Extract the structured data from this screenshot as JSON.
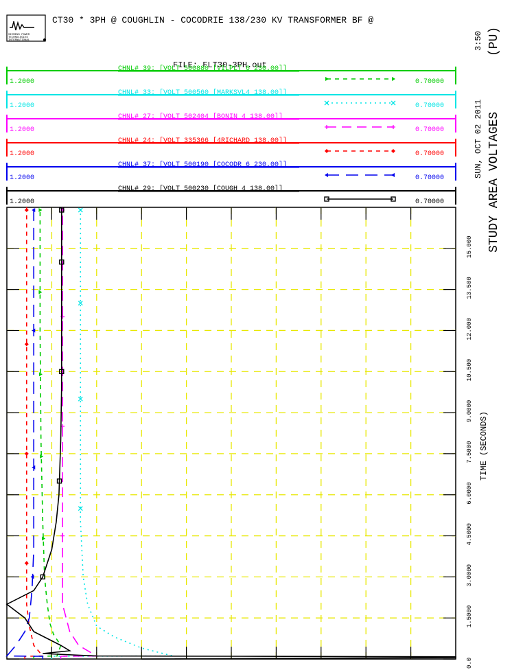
{
  "header": {
    "title": "CT30 * 3PH @ COUGHLIN - COCODRIE 138/230 KV TRANSFORMER BF @",
    "file": "FILE: FLT30-3PH.out",
    "logo_lines": [
      "SIEMENS POWER",
      "TECHNOLOGIES",
      "INTERNATIONAL"
    ]
  },
  "side": {
    "time": "3:50",
    "date": "SUN, OCT 02 2011",
    "units": "(PU)",
    "title": "STUDY AREA VOLTAGES"
  },
  "chart_data": {
    "type": "line",
    "xlabel": "TIME (SECONDS)",
    "xlim": [
      0,
      16.5
    ],
    "ylim": [
      0.7,
      1.2
    ],
    "x_ticks": [
      "0.0",
      "1.5000",
      "3.0000",
      "4.5000",
      "6.0000",
      "7.5000",
      "9.0000",
      "10.500",
      "12.000",
      "13.500",
      "15.000"
    ],
    "grid": true,
    "series": [
      {
        "name": "CHNL# 39: [VOLT 500880 [VILPLT 6    230.00]]",
        "color": "#00cc00",
        "ymax": "1.2000",
        "ymin": "0.70000",
        "points": [
          [
            0,
            0.73
          ],
          [
            0.1,
            0.73
          ],
          [
            0.11,
            0.756
          ],
          [
            0.5,
            0.76
          ],
          [
            0.9,
            0.752
          ],
          [
            1.3,
            0.748
          ],
          [
            2.0,
            0.745
          ],
          [
            3.0,
            0.742
          ],
          [
            5.0,
            0.74
          ],
          [
            8.0,
            0.738
          ],
          [
            12.0,
            0.737
          ],
          [
            16.5,
            0.737
          ]
        ]
      },
      {
        "name": "CHNL# 33: [VOLT 500560 [MARKSVL4    138.00]]",
        "color": "#00e5e5",
        "ymax": "1.2000",
        "ymin": "0.70000",
        "points": [
          [
            0,
            0.75
          ],
          [
            0.1,
            0.75
          ],
          [
            0.11,
            0.885
          ],
          [
            0.4,
            0.85
          ],
          [
            0.8,
            0.82
          ],
          [
            1.2,
            0.8
          ],
          [
            2.0,
            0.79
          ],
          [
            3.0,
            0.785
          ],
          [
            5.0,
            0.782
          ],
          [
            8.0,
            0.782
          ],
          [
            12.0,
            0.782
          ],
          [
            16.5,
            0.782
          ]
        ]
      },
      {
        "name": "CHNL# 27: [VOLT 502404 [BONIN  4    138.00]]",
        "color": "#ff00ff",
        "ymax": "1.2000",
        "ymin": "0.70000",
        "points": [
          [
            0,
            0.76
          ],
          [
            0.1,
            0.76
          ],
          [
            0.11,
            0.8
          ],
          [
            0.5,
            0.78
          ],
          [
            1.0,
            0.77
          ],
          [
            2.0,
            0.762
          ],
          [
            3.0,
            0.762
          ],
          [
            5.0,
            0.762
          ],
          [
            8.0,
            0.762
          ],
          [
            12.0,
            0.762
          ],
          [
            16.5,
            0.762
          ]
        ]
      },
      {
        "name": "CHNL# 24: [VOLT 335366 [4RICHARD    138.00]]",
        "color": "#ff0000",
        "ymax": "1.2000",
        "ymin": "0.70000",
        "points": [
          [
            0,
            0.72
          ],
          [
            0.1,
            0.72
          ],
          [
            0.11,
            0.74
          ],
          [
            0.5,
            0.73
          ],
          [
            1.2,
            0.725
          ],
          [
            2.0,
            0.722
          ],
          [
            3.0,
            0.722
          ],
          [
            8.0,
            0.722
          ],
          [
            16.5,
            0.722
          ]
        ]
      },
      {
        "name": "CHNL# 37: [VOLT 500190 [COCODR 6    230.00]]",
        "color": "#0000ee",
        "ymax": "1.2000",
        "ymin": "0.70000",
        "points": [
          [
            0,
            0.74
          ],
          [
            0.1,
            0.74
          ],
          [
            0.11,
            0.7
          ],
          [
            0.5,
            0.71
          ],
          [
            1.0,
            0.72
          ],
          [
            1.5,
            0.725
          ],
          [
            2.5,
            0.728
          ],
          [
            4.0,
            0.73
          ],
          [
            8.0,
            0.73
          ],
          [
            16.5,
            0.73
          ]
        ]
      },
      {
        "name": "CHNL# 29: [VOLT 500230 [COUGH  4    138.00]]",
        "color": "#000000",
        "ymax": "1.2000",
        "ymin": "0.70000",
        "points": [
          [
            0,
            0.85
          ],
          [
            0.05,
            1.2
          ],
          [
            0.08,
            1.2
          ],
          [
            0.1,
            0.96
          ],
          [
            0.11,
            0.8
          ],
          [
            0.2,
            0.74
          ],
          [
            0.3,
            0.77
          ],
          [
            0.5,
            0.76
          ],
          [
            1.0,
            0.73
          ],
          [
            1.5,
            0.72
          ],
          [
            2.0,
            0.7
          ],
          [
            2.5,
            0.73
          ],
          [
            3.0,
            0.74
          ],
          [
            4.0,
            0.75
          ],
          [
            5.0,
            0.755
          ],
          [
            6.0,
            0.758
          ],
          [
            8.0,
            0.76
          ],
          [
            10.0,
            0.761
          ],
          [
            12.0,
            0.761
          ],
          [
            16.5,
            0.761
          ]
        ]
      }
    ]
  }
}
